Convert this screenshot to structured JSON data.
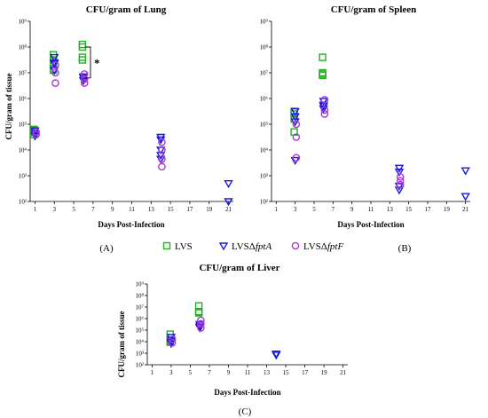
{
  "colors": {
    "LVS": "#22b022",
    "fptA": "#1a1adf",
    "fptF": "#a63ad6"
  },
  "legend": {
    "items": [
      {
        "key": "LVS",
        "text": "LVS",
        "italic": "",
        "marker": "square"
      },
      {
        "key": "fptA",
        "text": "LVSΔ",
        "italic": "fptA",
        "marker": "triangle"
      },
      {
        "key": "fptF",
        "text": "LVSΔ",
        "italic": "fptF",
        "marker": "circle"
      }
    ]
  },
  "panel_labels": [
    "(A)",
    "(B)",
    "(C)"
  ],
  "chart_data": [
    {
      "type": "scatter",
      "title": "CFU/gram of Lung",
      "xlabel": "Days Post-Infection",
      "ylabel": "CFU/gram of tissue",
      "x_ticks": [
        "1",
        "3",
        "5",
        "7",
        "9",
        "11",
        "13",
        "15",
        "17",
        "19",
        "21"
      ],
      "xlim": [
        0.5,
        21.5
      ],
      "y_ticks": [
        "10²",
        "10³",
        "10⁴",
        "10⁵",
        "10⁶",
        "10⁷",
        "10⁸",
        "10⁹"
      ],
      "ylim_log10": [
        2,
        9
      ],
      "significance": "*",
      "series": [
        {
          "key": "LVS",
          "points": [
            [
              1,
              4.7
            ],
            [
              1,
              4.8
            ],
            [
              1,
              4.6
            ],
            [
              1,
              4.75
            ],
            [
              3,
              7.7
            ],
            [
              3,
              7.5
            ],
            [
              3,
              7.3
            ],
            [
              3,
              7.1
            ],
            [
              3,
              7.15
            ],
            [
              6,
              8.1
            ],
            [
              6,
              8.0
            ],
            [
              6,
              7.6
            ],
            [
              6,
              7.5
            ]
          ]
        },
        {
          "key": "fptA",
          "points": [
            [
              1,
              4.75
            ],
            [
              1,
              4.65
            ],
            [
              1,
              4.55
            ],
            [
              3,
              7.6
            ],
            [
              3,
              7.4
            ],
            [
              3,
              7.35
            ],
            [
              3,
              7.1
            ],
            [
              6,
              6.85
            ],
            [
              6,
              6.8
            ],
            [
              6,
              6.7
            ],
            [
              14,
              4.5
            ],
            [
              14,
              4.4
            ],
            [
              14,
              4.0
            ],
            [
              14,
              3.8
            ],
            [
              14,
              3.65
            ],
            [
              21,
              2.7
            ],
            [
              21,
              2.0
            ]
          ]
        },
        {
          "key": "fptF",
          "points": [
            [
              1,
              4.7
            ],
            [
              1,
              4.6
            ],
            [
              3,
              7.3
            ],
            [
              3,
              7.0
            ],
            [
              3,
              6.6
            ],
            [
              6,
              6.95
            ],
            [
              6,
              6.75
            ],
            [
              6,
              6.6
            ],
            [
              14,
              4.3
            ],
            [
              14,
              4.0
            ],
            [
              14,
              3.65
            ],
            [
              14,
              3.35
            ]
          ]
        }
      ]
    },
    {
      "type": "scatter",
      "title": "CFU/gram of Spleen",
      "xlabel": "Days Post-Infection",
      "ylabel": "",
      "x_ticks": [
        "1",
        "3",
        "5",
        "7",
        "9",
        "11",
        "13",
        "15",
        "17",
        "19",
        "21"
      ],
      "xlim": [
        0.5,
        21.5
      ],
      "y_ticks": [
        "10²",
        "10³",
        "10⁴",
        "10⁵",
        "10⁶",
        "10⁷",
        "10⁸",
        "10⁹"
      ],
      "ylim_log10": [
        2,
        9
      ],
      "series": [
        {
          "key": "LVS",
          "points": [
            [
              3,
              5.5
            ],
            [
              3,
              5.4
            ],
            [
              3,
              5.2
            ],
            [
              3,
              4.7
            ],
            [
              6,
              7.6
            ],
            [
              6,
              7.0
            ],
            [
              6,
              6.95
            ],
            [
              6,
              6.9
            ]
          ]
        },
        {
          "key": "fptA",
          "points": [
            [
              3,
              5.5
            ],
            [
              3,
              5.3
            ],
            [
              3,
              5.1
            ],
            [
              3,
              3.6
            ],
            [
              6,
              5.9
            ],
            [
              6,
              5.75
            ],
            [
              6,
              5.7
            ],
            [
              6,
              5.6
            ],
            [
              14,
              3.3
            ],
            [
              14,
              3.15
            ],
            [
              14,
              2.6
            ],
            [
              14,
              2.45
            ],
            [
              21,
              3.2
            ],
            [
              21,
              2.2
            ]
          ]
        },
        {
          "key": "fptF",
          "points": [
            [
              3,
              5.0
            ],
            [
              3,
              4.5
            ],
            [
              3,
              3.7
            ],
            [
              6,
              5.95
            ],
            [
              6,
              5.55
            ],
            [
              6,
              5.4
            ],
            [
              14,
              2.95
            ],
            [
              14,
              2.8
            ],
            [
              14,
              2.65
            ]
          ]
        }
      ]
    },
    {
      "type": "scatter",
      "title": "CFU/gram of Liver",
      "xlabel": "Days Post-Infection",
      "ylabel": "CFU/gram of tissue",
      "x_ticks": [
        "1",
        "3",
        "5",
        "7",
        "9",
        "11",
        "13",
        "15",
        "17",
        "19",
        "21"
      ],
      "xlim": [
        0.5,
        21.5
      ],
      "y_ticks": [
        "10²",
        "10³",
        "10⁴",
        "10⁵",
        "10⁶",
        "10⁷",
        "10⁸",
        "10⁹"
      ],
      "ylim_log10": [
        2,
        9
      ],
      "series": [
        {
          "key": "LVS",
          "points": [
            [
              3,
              4.65
            ],
            [
              3,
              4.1
            ],
            [
              3,
              4.0
            ],
            [
              3,
              3.95
            ],
            [
              6,
              7.1
            ],
            [
              6,
              6.6
            ],
            [
              6,
              6.55
            ],
            [
              6,
              6.5
            ]
          ]
        },
        {
          "key": "fptA",
          "points": [
            [
              3,
              4.4
            ],
            [
              3,
              4.15
            ],
            [
              3,
              3.95
            ],
            [
              3,
              3.85
            ],
            [
              6,
              5.5
            ],
            [
              6,
              5.35
            ],
            [
              6,
              5.25
            ],
            [
              6,
              5.2
            ],
            [
              14,
              2.95
            ],
            [
              14,
              2.85
            ]
          ]
        },
        {
          "key": "fptF",
          "points": [
            [
              3,
              4.2
            ],
            [
              3,
              3.9
            ],
            [
              6,
              5.85
            ],
            [
              6,
              5.55
            ],
            [
              6,
              5.2
            ]
          ]
        }
      ]
    }
  ]
}
